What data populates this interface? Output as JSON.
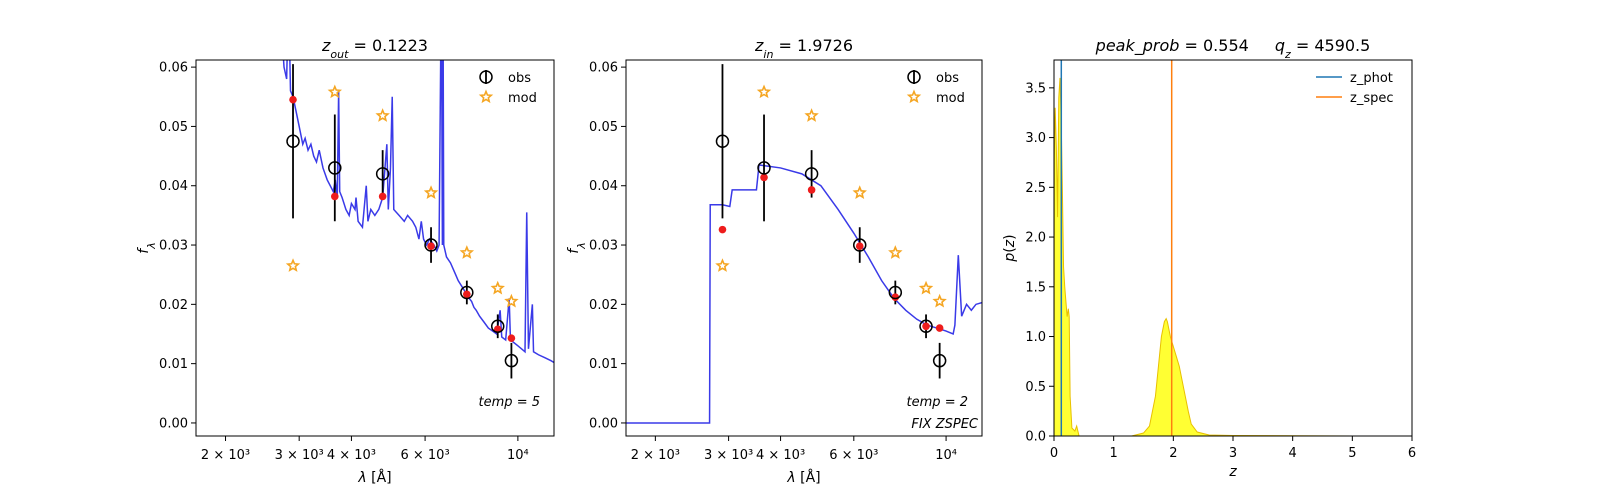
{
  "chart_data": [
    {
      "type": "scatter",
      "title": "z_out = 0.1223",
      "title_parts": {
        "var": "z",
        "sub": "out",
        "rest": " = 0.1223"
      },
      "xlabel": "λ [Å]",
      "ylabel": "f_λ",
      "xscale": "log",
      "xlim": [
        1700,
        12200
      ],
      "ylim": [
        -0.0022,
        0.0612
      ],
      "xticks": [
        {
          "value": 2000,
          "label": "2 × 10³"
        },
        {
          "value": 3000,
          "label": "3 × 10³"
        },
        {
          "value": 4000,
          "label": "4 × 10³"
        },
        {
          "value": 6000,
          "label": "6 × 10³"
        },
        {
          "value": 10000,
          "label": "10⁴"
        }
      ],
      "yticks": [
        {
          "value": 0.0,
          "label": "0.00"
        },
        {
          "value": 0.01,
          "label": "0.01"
        },
        {
          "value": 0.02,
          "label": "0.02"
        },
        {
          "value": 0.03,
          "label": "0.03"
        },
        {
          "value": 0.04,
          "label": "0.04"
        },
        {
          "value": 0.05,
          "label": "0.05"
        },
        {
          "value": 0.06,
          "label": "0.06"
        }
      ],
      "legend": {
        "placement": "top-right",
        "entries": [
          "obs",
          "mod"
        ]
      },
      "annotation": "temp = 5",
      "obs": [
        {
          "x": 2900,
          "y": 0.0475,
          "err": 0.013
        },
        {
          "x": 3650,
          "y": 0.043,
          "err": 0.009
        },
        {
          "x": 4750,
          "y": 0.042,
          "err": 0.004
        },
        {
          "x": 6200,
          "y": 0.03,
          "err": 0.003
        },
        {
          "x": 7550,
          "y": 0.022,
          "err": 0.002
        },
        {
          "x": 8950,
          "y": 0.0163,
          "err": 0.002
        },
        {
          "x": 9650,
          "y": 0.0105,
          "err": 0.003
        }
      ],
      "mod": [
        {
          "x": 2900,
          "y": 0.0265
        },
        {
          "x": 3650,
          "y": 0.0558
        },
        {
          "x": 4750,
          "y": 0.0518
        },
        {
          "x": 6200,
          "y": 0.0388
        },
        {
          "x": 7550,
          "y": 0.0287
        },
        {
          "x": 8950,
          "y": 0.0227
        },
        {
          "x": 9650,
          "y": 0.0205
        }
      ],
      "model_phot": [
        {
          "x": 2900,
          "y": 0.0545
        },
        {
          "x": 3650,
          "y": 0.0382
        },
        {
          "x": 4750,
          "y": 0.0382
        },
        {
          "x": 6200,
          "y": 0.0298
        },
        {
          "x": 7550,
          "y": 0.0217
        },
        {
          "x": 8950,
          "y": 0.0158
        },
        {
          "x": 9650,
          "y": 0.0143
        }
      ],
      "spectrum": [
        [
          2700,
          0.07
        ],
        [
          2760,
          0.06
        ],
        [
          2800,
          0.058
        ],
        [
          2830,
          0.072
        ],
        [
          2860,
          0.056
        ],
        [
          2900,
          0.055
        ],
        [
          2960,
          0.052
        ],
        [
          3000,
          0.05
        ],
        [
          3060,
          0.047
        ],
        [
          3100,
          0.048
        ],
        [
          3150,
          0.046
        ],
        [
          3200,
          0.047
        ],
        [
          3250,
          0.045
        ],
        [
          3300,
          0.044
        ],
        [
          3350,
          0.046
        ],
        [
          3420,
          0.043
        ],
        [
          3500,
          0.041
        ],
        [
          3560,
          0.04
        ],
        [
          3620,
          0.039
        ],
        [
          3660,
          0.041
        ],
        [
          3700,
          0.038
        ],
        [
          3728,
          0.056
        ],
        [
          3750,
          0.039
        ],
        [
          3800,
          0.038
        ],
        [
          3880,
          0.036
        ],
        [
          3950,
          0.035
        ],
        [
          4000,
          0.037
        ],
        [
          4080,
          0.036
        ],
        [
          4102,
          0.038
        ],
        [
          4150,
          0.034
        ],
        [
          4250,
          0.033
        ],
        [
          4340,
          0.04
        ],
        [
          4380,
          0.034
        ],
        [
          4450,
          0.036
        ],
        [
          4550,
          0.035
        ],
        [
          4650,
          0.036
        ],
        [
          4750,
          0.038
        ],
        [
          4861,
          0.047
        ],
        [
          4900,
          0.036
        ],
        [
          4959,
          0.043
        ],
        [
          5007,
          0.055
        ],
        [
          5050,
          0.036
        ],
        [
          5200,
          0.035
        ],
        [
          5350,
          0.034
        ],
        [
          5450,
          0.035
        ],
        [
          5600,
          0.034
        ],
        [
          5700,
          0.033
        ],
        [
          5800,
          0.031
        ],
        [
          5876,
          0.034
        ],
        [
          5950,
          0.031
        ],
        [
          6050,
          0.03
        ],
        [
          6150,
          0.031
        ],
        [
          6300,
          0.03
        ],
        [
          6400,
          0.029
        ],
        [
          6480,
          0.03
        ],
        [
          6563,
          0.075
        ],
        [
          6600,
          0.03
        ],
        [
          6620,
          0.075
        ],
        [
          6650,
          0.03
        ],
        [
          6750,
          0.028
        ],
        [
          6900,
          0.027
        ],
        [
          7000,
          0.026
        ],
        [
          7100,
          0.025
        ],
        [
          7200,
          0.024
        ],
        [
          7350,
          0.023
        ],
        [
          7500,
          0.022
        ],
        [
          7650,
          0.021
        ],
        [
          7750,
          0.0205
        ],
        [
          7850,
          0.0195
        ],
        [
          7950,
          0.019
        ],
        [
          8100,
          0.018
        ],
        [
          8300,
          0.017
        ],
        [
          8500,
          0.016
        ],
        [
          8700,
          0.0155
        ],
        [
          8900,
          0.015
        ],
        [
          9069,
          0.019
        ],
        [
          9150,
          0.0145
        ],
        [
          9350,
          0.014
        ],
        [
          9532,
          0.021
        ],
        [
          9600,
          0.014
        ],
        [
          9800,
          0.0135
        ],
        [
          10000,
          0.013
        ],
        [
          10200,
          0.0125
        ],
        [
          10400,
          0.012
        ],
        [
          10500,
          0.0355
        ],
        [
          10600,
          0.0125
        ],
        [
          10830,
          0.02
        ],
        [
          10900,
          0.012
        ],
        [
          11200,
          0.0115
        ],
        [
          11600,
          0.011
        ],
        [
          12000,
          0.0105
        ],
        [
          12200,
          0.0102
        ]
      ]
    },
    {
      "type": "scatter",
      "title": "z_in = 1.9726",
      "title_parts": {
        "var": "z",
        "sub": "in",
        "rest": " = 1.9726"
      },
      "xlabel": "λ [Å]",
      "ylabel": "f_λ",
      "xscale": "log",
      "xlim": [
        1700,
        12200
      ],
      "ylim": [
        -0.0022,
        0.0612
      ],
      "xticks": [
        {
          "value": 2000,
          "label": "2 × 10³"
        },
        {
          "value": 3000,
          "label": "3 × 10³"
        },
        {
          "value": 4000,
          "label": "4 × 10³"
        },
        {
          "value": 6000,
          "label": "6 × 10³"
        },
        {
          "value": 10000,
          "label": "10⁴"
        }
      ],
      "yticks": [
        {
          "value": 0.0,
          "label": "0.00"
        },
        {
          "value": 0.01,
          "label": "0.01"
        },
        {
          "value": 0.02,
          "label": "0.02"
        },
        {
          "value": 0.03,
          "label": "0.03"
        },
        {
          "value": 0.04,
          "label": "0.04"
        },
        {
          "value": 0.05,
          "label": "0.05"
        },
        {
          "value": 0.06,
          "label": "0.06"
        }
      ],
      "legend": {
        "placement": "top-right",
        "entries": [
          "obs",
          "mod"
        ]
      },
      "annotation": "temp = 2",
      "annotation2": "FIX ZSPEC",
      "obs": [
        {
          "x": 2900,
          "y": 0.0475,
          "err": 0.013
        },
        {
          "x": 3650,
          "y": 0.043,
          "err": 0.009
        },
        {
          "x": 4750,
          "y": 0.042,
          "err": 0.004
        },
        {
          "x": 6200,
          "y": 0.03,
          "err": 0.003
        },
        {
          "x": 7550,
          "y": 0.022,
          "err": 0.002
        },
        {
          "x": 8950,
          "y": 0.0163,
          "err": 0.002
        },
        {
          "x": 9650,
          "y": 0.0105,
          "err": 0.003
        }
      ],
      "mod": [
        {
          "x": 2900,
          "y": 0.0265
        },
        {
          "x": 3650,
          "y": 0.0558
        },
        {
          "x": 4750,
          "y": 0.0518
        },
        {
          "x": 6200,
          "y": 0.0388
        },
        {
          "x": 7550,
          "y": 0.0287
        },
        {
          "x": 8950,
          "y": 0.0227
        },
        {
          "x": 9650,
          "y": 0.0205
        }
      ],
      "model_phot": [
        {
          "x": 2900,
          "y": 0.0326
        },
        {
          "x": 3650,
          "y": 0.0414
        },
        {
          "x": 4750,
          "y": 0.0393
        },
        {
          "x": 6200,
          "y": 0.0298
        },
        {
          "x": 7550,
          "y": 0.0212
        },
        {
          "x": 8950,
          "y": 0.0163
        },
        {
          "x": 9650,
          "y": 0.016
        }
      ],
      "spectrum": [
        [
          1700,
          0.0
        ],
        [
          2700,
          0.0
        ],
        [
          2710,
          0.0368
        ],
        [
          2900,
          0.0368
        ],
        [
          3020,
          0.0365
        ],
        [
          3060,
          0.0393
        ],
        [
          3500,
          0.0393
        ],
        [
          3550,
          0.0435
        ],
        [
          4000,
          0.043
        ],
        [
          4500,
          0.042
        ],
        [
          5000,
          0.04
        ],
        [
          5500,
          0.036
        ],
        [
          6000,
          0.032
        ],
        [
          6500,
          0.028
        ],
        [
          7000,
          0.024
        ],
        [
          7500,
          0.021
        ],
        [
          8000,
          0.019
        ],
        [
          8500,
          0.0175
        ],
        [
          9000,
          0.0165
        ],
        [
          9500,
          0.016
        ],
        [
          10000,
          0.0155
        ],
        [
          10400,
          0.015
        ],
        [
          10500,
          0.0165
        ],
        [
          10700,
          0.0283
        ],
        [
          10900,
          0.018
        ],
        [
          11200,
          0.02
        ],
        [
          11500,
          0.019
        ],
        [
          11800,
          0.02
        ],
        [
          12200,
          0.0203
        ]
      ]
    },
    {
      "type": "area",
      "title": "peak_prob = 0.554     q_z = 4590.5",
      "title_parts": [
        {
          "var": "peak_prob",
          "rest": " = 0.554"
        },
        {
          "var": "q",
          "sub": "z",
          "rest": " = 4590.5"
        }
      ],
      "xlabel": "z",
      "ylabel": "p(z)",
      "xlim": [
        0,
        6
      ],
      "ylim": [
        0,
        3.78
      ],
      "xticks": [
        0,
        1,
        2,
        3,
        4,
        5,
        6
      ],
      "yticks": [
        0.0,
        0.5,
        1.0,
        1.5,
        2.0,
        2.5,
        3.0,
        3.5
      ],
      "legend": {
        "placement": "top-right",
        "entries": [
          "z_phot",
          "z_spec"
        ]
      },
      "z_phot": 0.1223,
      "z_spec": 1.9726,
      "colors": {
        "z_phot": "#1f77b4",
        "z_spec": "#ff7f0e",
        "fill": "#ffff33",
        "fill_edge": "#e8c000"
      },
      "pz": [
        [
          0.0,
          0.0
        ],
        [
          0.005,
          2.8
        ],
        [
          0.02,
          3.3
        ],
        [
          0.04,
          2.9
        ],
        [
          0.06,
          2.2
        ],
        [
          0.08,
          3.4
        ],
        [
          0.1,
          3.6
        ],
        [
          0.12,
          3.2
        ],
        [
          0.14,
          2.5
        ],
        [
          0.16,
          1.7
        ],
        [
          0.18,
          1.5
        ],
        [
          0.2,
          1.35
        ],
        [
          0.22,
          1.2
        ],
        [
          0.24,
          1.28
        ],
        [
          0.255,
          1.2
        ],
        [
          0.27,
          0.4
        ],
        [
          0.3,
          0.08
        ],
        [
          0.35,
          0.05
        ],
        [
          0.38,
          0.1
        ],
        [
          0.4,
          0.05
        ],
        [
          0.42,
          0.0
        ],
        [
          1.3,
          0.0
        ],
        [
          1.5,
          0.03
        ],
        [
          1.6,
          0.1
        ],
        [
          1.7,
          0.4
        ],
        [
          1.75,
          0.7
        ],
        [
          1.8,
          1.0
        ],
        [
          1.85,
          1.15
        ],
        [
          1.88,
          1.18
        ],
        [
          1.9,
          1.15
        ],
        [
          1.95,
          1.0
        ],
        [
          2.0,
          0.9
        ],
        [
          2.05,
          0.8
        ],
        [
          2.1,
          0.7
        ],
        [
          2.15,
          0.55
        ],
        [
          2.2,
          0.4
        ],
        [
          2.25,
          0.25
        ],
        [
          2.3,
          0.12
        ],
        [
          2.4,
          0.04
        ],
        [
          2.6,
          0.01
        ],
        [
          3.0,
          0.005
        ],
        [
          5.0,
          0.0
        ]
      ]
    }
  ],
  "colors": {
    "spectrum": "#3a3ae8",
    "obs": "#000000",
    "mod": "#f5a623",
    "model_phot": "#ee1c1c"
  }
}
